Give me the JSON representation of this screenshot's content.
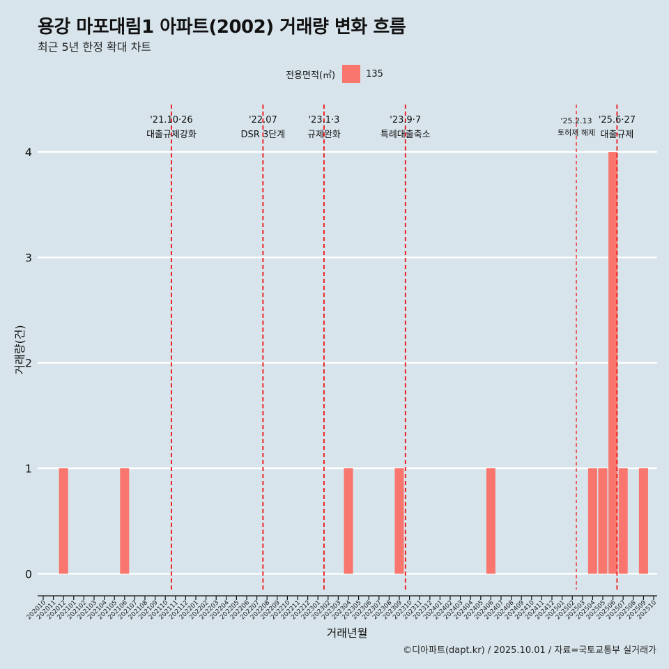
{
  "title": "용강 마포대림1 아파트(2002) 거래량 변화 흐름",
  "subtitle": "최근 5년 한정 확대 차트",
  "legend": {
    "title": "전용면적(㎡)",
    "items": [
      "135"
    ]
  },
  "caption": "©디아파트(dapt.kr) / 2025.10.01 / 자료=국토교통부 실거래가",
  "colors": {
    "bar": "#f8766d",
    "vline": "#ee1111",
    "grid": "#ffffff",
    "background": "#d7e4eb"
  },
  "chart_data": {
    "type": "bar",
    "xlabel": "거래년월",
    "ylabel": "거래량(건)",
    "ylim": [
      -0.15,
      4.45
    ],
    "yticks": [
      0,
      1,
      2,
      3,
      4
    ],
    "categories": [
      "202010",
      "202011",
      "202012",
      "202101",
      "202102",
      "202103",
      "202104",
      "202105",
      "202106",
      "202107",
      "202108",
      "202109",
      "202110",
      "202111",
      "202112",
      "202201",
      "202202",
      "202203",
      "202204",
      "202205",
      "202206",
      "202207",
      "202208",
      "202209",
      "202210",
      "202211",
      "202212",
      "202301",
      "202302",
      "202303",
      "202304",
      "202305",
      "202306",
      "202307",
      "202308",
      "202309",
      "202310",
      "202311",
      "202312",
      "202401",
      "202402",
      "202403",
      "202404",
      "202405",
      "202406",
      "202407",
      "202408",
      "202409",
      "202410",
      "202411",
      "202412",
      "202501",
      "202502",
      "202503",
      "202504",
      "202505",
      "202506",
      "202507",
      "202508",
      "202509",
      "202510"
    ],
    "series": [
      {
        "name": "135",
        "values": [
          0,
          0,
          1,
          0,
          0,
          0,
          0,
          0,
          1,
          0,
          0,
          0,
          0,
          0,
          0,
          0,
          0,
          0,
          0,
          0,
          0,
          0,
          0,
          0,
          0,
          0,
          0,
          0,
          0,
          0,
          1,
          0,
          0,
          0,
          0,
          1,
          0,
          0,
          0,
          0,
          0,
          0,
          0,
          0,
          1,
          0,
          0,
          0,
          0,
          0,
          0,
          0,
          0,
          0,
          1,
          1,
          4,
          1,
          0,
          1,
          0
        ]
      }
    ],
    "events": [
      {
        "date": "'21.10·26",
        "label": "대출규제강화",
        "pos": 12.6,
        "style": "major"
      },
      {
        "date": "'22.07",
        "label": "DSR 3단계",
        "pos": 21.6,
        "style": "major"
      },
      {
        "date": "'23.1·3",
        "label": "규제완화",
        "pos": 27.6,
        "style": "major"
      },
      {
        "date": "'23.9·7",
        "label": "특례대출축소",
        "pos": 35.6,
        "style": "major"
      },
      {
        "date": "'25.2.13",
        "label": "토허제 해제",
        "pos": 52.4,
        "style": "minor"
      },
      {
        "date": "'25.6·27",
        "label": "대출규제",
        "pos": 56.4,
        "style": "major"
      }
    ]
  }
}
